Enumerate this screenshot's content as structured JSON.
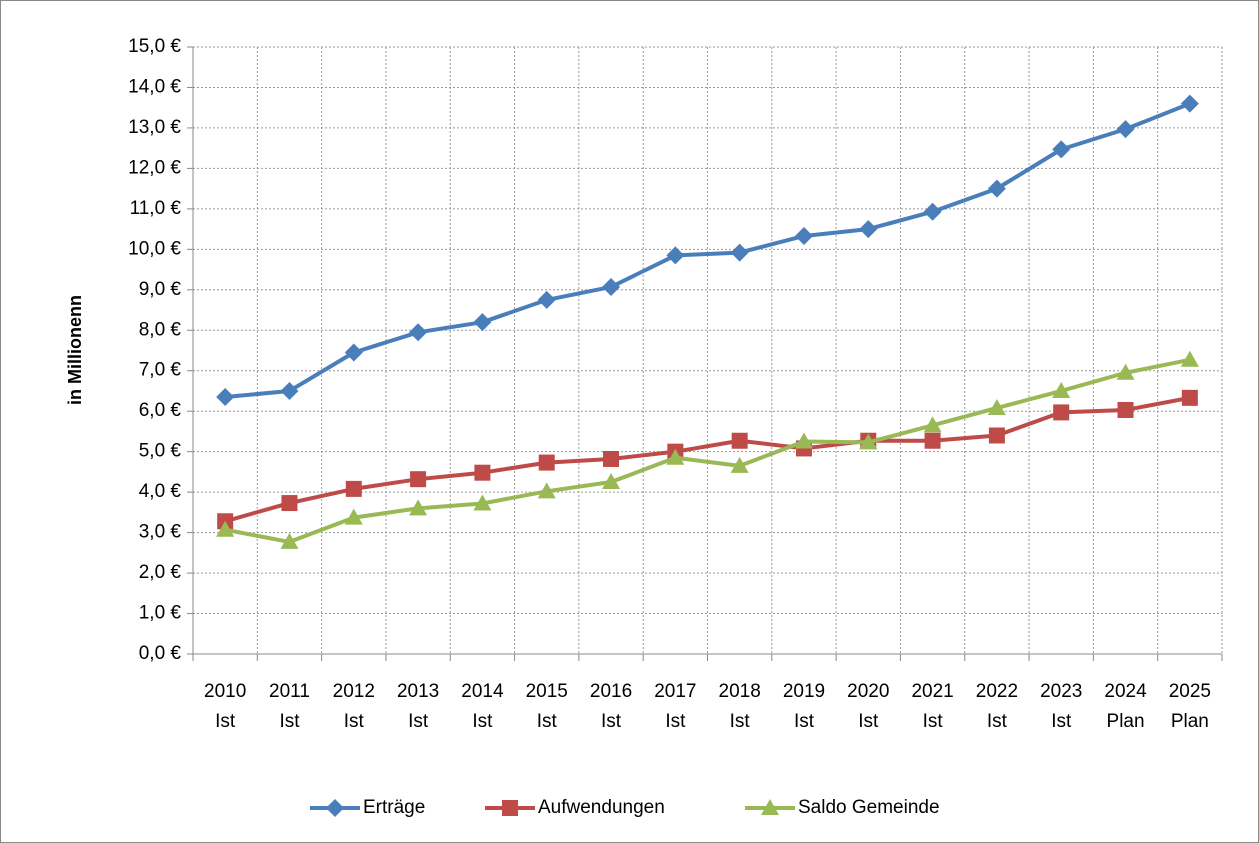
{
  "chart_data": {
    "type": "line",
    "y_label": "in Millionenn",
    "categories": [
      "2010 Ist",
      "2011 Ist",
      "2012 Ist",
      "2013 Ist",
      "2014 Ist",
      "2015 Ist",
      "2016 Ist",
      "2017 Ist",
      "2018 Ist",
      "2019 Ist",
      "2020 Ist",
      "2021 Ist",
      "2022 Ist",
      "2023 Ist",
      "2024 Plan",
      "2025 Plan"
    ],
    "series": [
      {
        "name": "Erträge",
        "color": "#4a7ebb",
        "marker": "diamond",
        "values": [
          6.35,
          6.5,
          7.45,
          7.95,
          8.2,
          8.75,
          9.07,
          9.85,
          9.92,
          10.33,
          10.5,
          10.93,
          11.5,
          12.47,
          12.97,
          13.6
        ]
      },
      {
        "name": "Aufwendungen",
        "color": "#be4b48",
        "marker": "square",
        "values": [
          3.28,
          3.73,
          4.08,
          4.32,
          4.48,
          4.73,
          4.82,
          5.0,
          5.27,
          5.08,
          5.27,
          5.27,
          5.4,
          5.97,
          6.03,
          6.33
        ]
      },
      {
        "name": "Saldo Gemeinde",
        "color": "#98b954",
        "marker": "triangle",
        "values": [
          3.07,
          2.77,
          3.37,
          3.6,
          3.72,
          4.02,
          4.25,
          4.85,
          4.65,
          5.25,
          5.23,
          5.65,
          6.08,
          6.5,
          6.95,
          7.27
        ]
      }
    ],
    "ylim": [
      0,
      15
    ],
    "yticks": [
      {
        "value": 0,
        "label": "0,0 €"
      },
      {
        "value": 1,
        "label": "1,0 €"
      },
      {
        "value": 2,
        "label": "2,0 €"
      },
      {
        "value": 3,
        "label": "3,0 €"
      },
      {
        "value": 4,
        "label": "4,0 €"
      },
      {
        "value": 5,
        "label": "5,0 €"
      },
      {
        "value": 6,
        "label": "6,0 €"
      },
      {
        "value": 7,
        "label": "7,0 €"
      },
      {
        "value": 8,
        "label": "8,0 €"
      },
      {
        "value": 9,
        "label": "9,0 €"
      },
      {
        "value": 10,
        "label": "10,0 €"
      },
      {
        "value": 11,
        "label": "11,0 €"
      },
      {
        "value": 12,
        "label": "12,0 €"
      },
      {
        "value": 13,
        "label": "13,0 €"
      },
      {
        "value": 14,
        "label": "14,0 €"
      },
      {
        "value": 15,
        "label": "15,0 €"
      }
    ],
    "grid": true,
    "legend": "bottom"
  }
}
